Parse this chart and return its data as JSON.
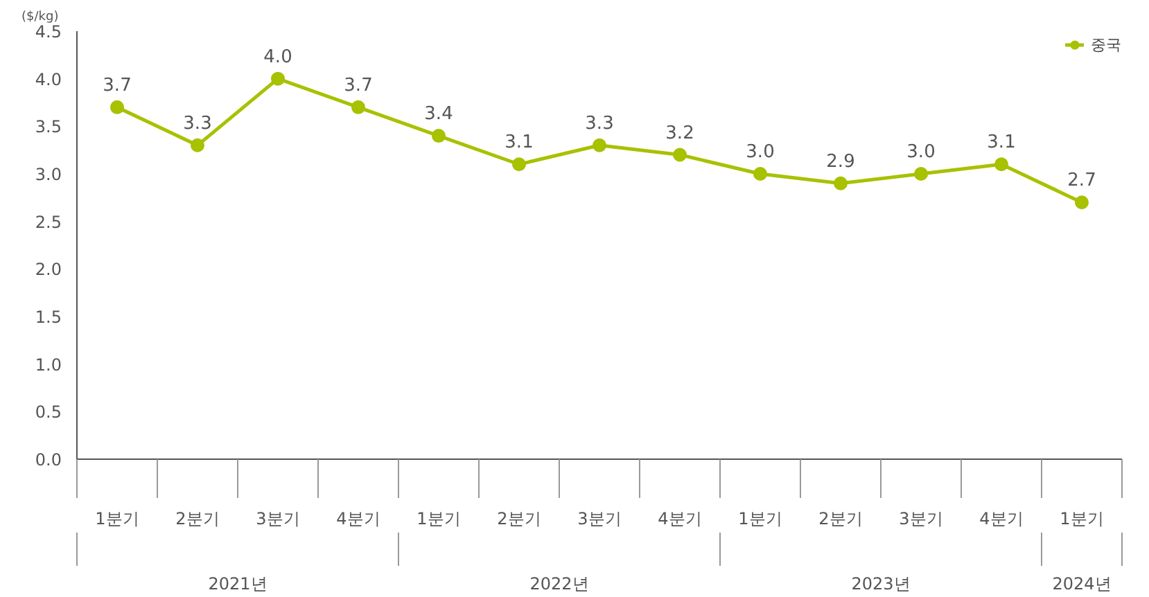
{
  "chart_data": {
    "type": "line",
    "ylabel": "($/kg)",
    "categories": [
      "1분기",
      "2분기",
      "3분기",
      "4분기",
      "1분기",
      "2분기",
      "3분기",
      "4분기",
      "1분기",
      "2분기",
      "3분기",
      "4분기",
      "1분기"
    ],
    "series": [
      {
        "name": "중국",
        "color": "#a8c100",
        "values": [
          3.7,
          3.3,
          4.0,
          3.7,
          3.4,
          3.1,
          3.3,
          3.2,
          3.0,
          2.9,
          3.0,
          3.1,
          2.7
        ],
        "value_labels": [
          "3.7",
          "3.3",
          "4.0",
          "3.7",
          "3.4",
          "3.1",
          "3.3",
          "3.2",
          "3.0",
          "2.9",
          "3.0",
          "3.1",
          "2.7"
        ]
      }
    ],
    "annotations": [
      "2021년",
      "2022년",
      "2023년",
      "2024년"
    ],
    "ylim": [
      0,
      4.5
    ],
    "yticks": [
      {
        "value": 0,
        "label": "0.0"
      },
      {
        "value": 0.5,
        "label": "0.5"
      },
      {
        "value": 1,
        "label": "1.0"
      },
      {
        "value": 1.5,
        "label": "1.5"
      },
      {
        "value": 2,
        "label": "2.0"
      },
      {
        "value": 2.5,
        "label": "2.5"
      },
      {
        "value": 3,
        "label": "3.0"
      },
      {
        "value": 3.5,
        "label": "3.5"
      },
      {
        "value": 4,
        "label": "4.0"
      },
      {
        "value": 4.5,
        "label": "4.5"
      }
    ],
    "marker": "circle",
    "legend": "top right",
    "grid": false
  }
}
